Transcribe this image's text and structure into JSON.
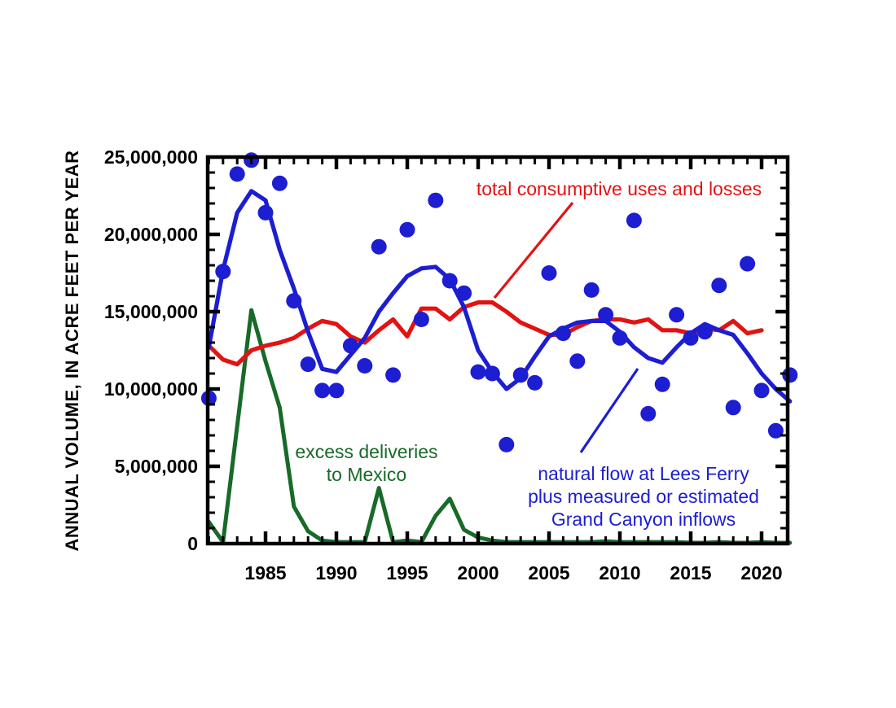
{
  "figure": {
    "background": "#ffffff"
  },
  "chart_data": {
    "type": "line",
    "subtype": "line+scatter",
    "title": "",
    "xlabel": "",
    "ylabel": "ANNUAL VOLUME, IN ACRE FEET PER YEAR",
    "grid": false,
    "legend_position": "inline-annotations-with-callout-lines",
    "x_range": [
      1980.9,
      2021.9
    ],
    "y_range": [
      0,
      25000000
    ],
    "x_tick_values": [
      1985,
      1990,
      1995,
      2000,
      2005,
      2010,
      2015,
      2020
    ],
    "x_tick_labels": [
      "1985",
      "1990",
      "1995",
      "2000",
      "2005",
      "2010",
      "2015",
      "2020"
    ],
    "x_minor_tick_step_years": 1,
    "y_tick_values": [
      0,
      5000000,
      10000000,
      15000000,
      20000000,
      25000000
    ],
    "y_tick_labels": [
      "0",
      "5,000,000",
      "10,000,000",
      "15,000,000",
      "20,000,000",
      "25,000,000"
    ],
    "y_minor_tick_step": 1000000,
    "colors": {
      "natural_flow": "#1d1dd2",
      "consumptive": "#e21313",
      "mexico": "#186a28",
      "axis": "#000000"
    },
    "series": [
      {
        "id": "natural-flow-dots",
        "name": "annual natural flow at Lees Ferry plus measured or estimated Grand Canyon inflows (annual values)",
        "type": "scatter",
        "color_key": "natural_flow",
        "marker_radius": 9.5,
        "years": [
          1981,
          1982,
          1983,
          1984,
          1985,
          1986,
          1987,
          1988,
          1989,
          1990,
          1991,
          1992,
          1993,
          1994,
          1995,
          1996,
          1997,
          1998,
          1999,
          2000,
          2001,
          2002,
          2003,
          2004,
          2005,
          2006,
          2007,
          2008,
          2009,
          2010,
          2011,
          2012,
          2013,
          2014,
          2015,
          2016,
          2017,
          2018,
          2019,
          2020,
          2021,
          2022
        ],
        "values": [
          9400000,
          17600000,
          23900000,
          24800000,
          21400000,
          23300000,
          15700000,
          11600000,
          9900000,
          9900000,
          12800000,
          11500000,
          19200000,
          10900000,
          20300000,
          14500000,
          22200000,
          17000000,
          16200000,
          11100000,
          11000000,
          6400000,
          10900000,
          10400000,
          17500000,
          13600000,
          11800000,
          16400000,
          14800000,
          13300000,
          20900000,
          8400000,
          10300000,
          14800000,
          13300000,
          13700000,
          16700000,
          8800000,
          18100000,
          9900000,
          7300000,
          10900000
        ]
      },
      {
        "id": "natural-flow-line",
        "name": "natural flow at Lees Ferry plus measured or estimated Grand Canyon inflows (smoothed)",
        "type": "line",
        "color_key": "natural_flow",
        "stroke_width": 5.2,
        "years": [
          1981,
          1982,
          1983,
          1984,
          1985,
          1986,
          1987,
          1988,
          1989,
          1990,
          1991,
          1992,
          1993,
          1994,
          1995,
          1996,
          1997,
          1998,
          1999,
          2000,
          2001,
          2002,
          2003,
          2004,
          2005,
          2006,
          2007,
          2008,
          2009,
          2010,
          2011,
          2012,
          2013,
          2014,
          2015,
          2016,
          2017,
          2018,
          2019,
          2020,
          2021,
          2022
        ],
        "values": [
          12700000,
          17700000,
          21400000,
          22800000,
          22200000,
          19000000,
          16500000,
          13700000,
          11300000,
          11100000,
          12200000,
          13300000,
          15000000,
          16200000,
          17300000,
          17800000,
          17900000,
          17100000,
          15300000,
          12500000,
          11100000,
          10000000,
          10700000,
          12100000,
          13400000,
          13900000,
          14300000,
          14400000,
          14400000,
          13700000,
          12700000,
          12000000,
          11700000,
          12700000,
          13600000,
          14200000,
          13800000,
          13500000,
          12300000,
          11000000,
          10000000,
          9200000
        ]
      },
      {
        "id": "consumptive-line",
        "name": "total consumptive uses and losses",
        "type": "line",
        "color_key": "consumptive",
        "stroke_width": 5.2,
        "years": [
          1981,
          1982,
          1983,
          1984,
          1985,
          1986,
          1987,
          1988,
          1989,
          1990,
          1991,
          1992,
          1993,
          1994,
          1995,
          1996,
          1997,
          1998,
          1999,
          2000,
          2001,
          2002,
          2003,
          2004,
          2005,
          2006,
          2007,
          2008,
          2009,
          2010,
          2011,
          2012,
          2013,
          2014,
          2015,
          2016,
          2017,
          2018,
          2019,
          2020
        ],
        "values": [
          12800000,
          11900000,
          11600000,
          12500000,
          12800000,
          13000000,
          13300000,
          13900000,
          14400000,
          14200000,
          13400000,
          13000000,
          13800000,
          14500000,
          13400000,
          15200000,
          15200000,
          14500000,
          15300000,
          15600000,
          15600000,
          15000000,
          14300000,
          13900000,
          13500000,
          13500000,
          14000000,
          14400000,
          14500000,
          14500000,
          14300000,
          14500000,
          13800000,
          13800000,
          13600000,
          13900000,
          13800000,
          14400000,
          13600000,
          13800000
        ]
      },
      {
        "id": "mexico-line",
        "name": "excess deliveries to Mexico",
        "type": "line",
        "color_key": "mexico",
        "stroke_width": 5.0,
        "years": [
          1981,
          1982,
          1983,
          1984,
          1985,
          1986,
          1987,
          1988,
          1989,
          1990,
          1991,
          1992,
          1993,
          1994,
          1995,
          1996,
          1997,
          1998,
          1999,
          2000,
          2001,
          2002,
          2003,
          2004,
          2005,
          2006,
          2007,
          2008,
          2009,
          2010,
          2011,
          2012,
          2013,
          2014,
          2015,
          2016,
          2017,
          2018,
          2019,
          2020,
          2021,
          2022
        ],
        "values": [
          1400000,
          100000,
          7600000,
          15100000,
          11800000,
          8800000,
          2400000,
          800000,
          200000,
          100000,
          100000,
          100000,
          3600000,
          100000,
          200000,
          100000,
          1800000,
          2900000,
          900000,
          400000,
          200000,
          100000,
          100000,
          100000,
          100000,
          100000,
          100000,
          100000,
          150000,
          100000,
          100000,
          100000,
          100000,
          100000,
          50000,
          50000,
          100000,
          50000,
          50000,
          100000,
          50000,
          50000
        ]
      }
    ],
    "annotations": {
      "red_label": "total consumptive uses and losses",
      "blue_label_lines": [
        "natural flow at Lees Ferry",
        "plus measured or estimated",
        "Grand Canyon inflows"
      ],
      "green_label_lines": [
        "excess deliveries",
        "to Mexico"
      ]
    }
  }
}
